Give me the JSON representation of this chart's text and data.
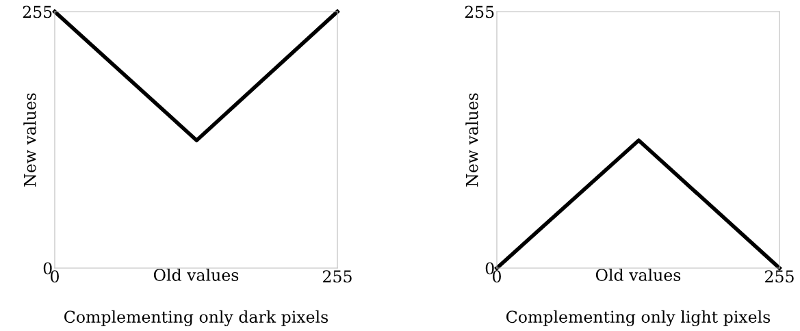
{
  "chart_data": [
    {
      "type": "line",
      "title": "Complementing only dark pixels",
      "xlabel": "Old values",
      "ylabel": "New values",
      "x": [
        0,
        128,
        255
      ],
      "series": [
        {
          "color": "#000000",
          "values": [
            255,
            127,
            255
          ]
        }
      ],
      "xlim": [
        0,
        255
      ],
      "ylim": [
        0,
        255
      ],
      "xticks": [
        0,
        255
      ],
      "yticks": [
        0,
        255
      ],
      "grid": false,
      "legend": false,
      "marker": "none",
      "line_style": "solid"
    },
    {
      "type": "line",
      "title": "Complementing only light pixels",
      "xlabel": "Old values",
      "ylabel": "New values",
      "x": [
        0,
        128,
        255
      ],
      "series": [
        {
          "color": "#000000",
          "values": [
            0,
            127,
            0
          ]
        }
      ],
      "xlim": [
        0,
        255
      ],
      "ylim": [
        0,
        255
      ],
      "xticks": [
        0,
        255
      ],
      "yticks": [
        0,
        255
      ],
      "grid": false,
      "legend": false,
      "marker": "none",
      "line_style": "solid"
    }
  ]
}
